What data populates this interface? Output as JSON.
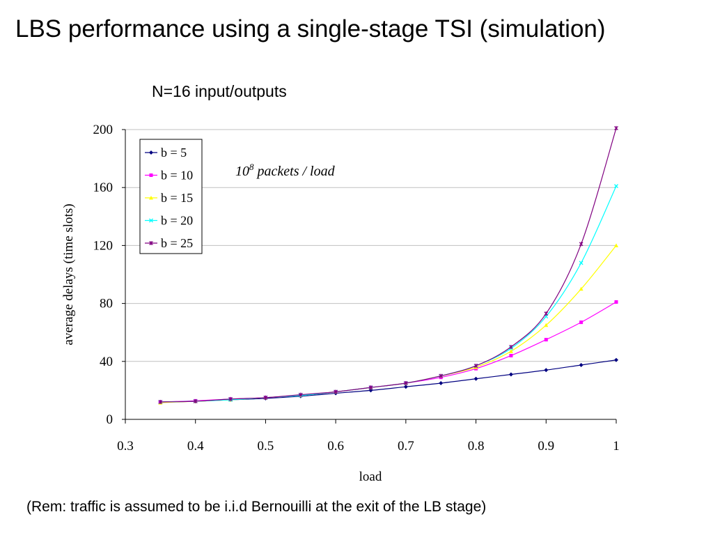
{
  "slide": {
    "title": "LBS performance using a single-stage TSI (simulation)",
    "footnote": "(Rem: traffic is assumed to be i.i.d Bernouilli at the exit of the LB stage)"
  },
  "chart_data": {
    "type": "line",
    "title": "N=16 input/outputs",
    "xlabel": "load",
    "ylabel": "average delays (time slots)",
    "xlim": [
      0.3,
      1
    ],
    "ylim": [
      0,
      200
    ],
    "xticks": [
      "0.3",
      "0.4",
      "0.5",
      "0.6",
      "0.7",
      "0.8",
      "0.9",
      "1"
    ],
    "yticks": [
      "0",
      "40",
      "80",
      "120",
      "160",
      "200"
    ],
    "grid": "horizontal",
    "legend_position": "top-left",
    "annotation": {
      "base": "10",
      "exponent": "8",
      "text": " packets / load"
    },
    "x": [
      0.35,
      0.4,
      0.45,
      0.5,
      0.55,
      0.6,
      0.65,
      0.7,
      0.75,
      0.8,
      0.85,
      0.9,
      0.95,
      1.0
    ],
    "series": [
      {
        "name": "b = 5",
        "color": "#000080",
        "marker": "diamond",
        "values": [
          12,
          12.5,
          13.5,
          14.5,
          16,
          18,
          20,
          22.5,
          25,
          28,
          31,
          34,
          37.5,
          41
        ]
      },
      {
        "name": "b = 10",
        "color": "#ff00ff",
        "marker": "square",
        "values": [
          12,
          12.8,
          14,
          15,
          16.5,
          19,
          22,
          25,
          29,
          35,
          44,
          55,
          67,
          81
        ]
      },
      {
        "name": "b = 15",
        "color": "#ffff00",
        "marker": "triangle",
        "values": [
          11.5,
          12.5,
          13.5,
          15,
          16.5,
          19,
          22,
          25,
          30,
          36,
          47,
          65,
          90,
          120
        ]
      },
      {
        "name": "b = 20",
        "color": "#00ffff",
        "marker": "x",
        "values": [
          12,
          12.5,
          13.5,
          15,
          16.5,
          19,
          22,
          25,
          30,
          37,
          49,
          71,
          108,
          161
        ]
      },
      {
        "name": "b = 25",
        "color": "#800080",
        "marker": "star",
        "values": [
          12,
          12.5,
          14,
          15,
          17,
          19,
          22,
          25,
          30,
          37,
          50,
          73,
          121,
          201
        ]
      }
    ]
  }
}
